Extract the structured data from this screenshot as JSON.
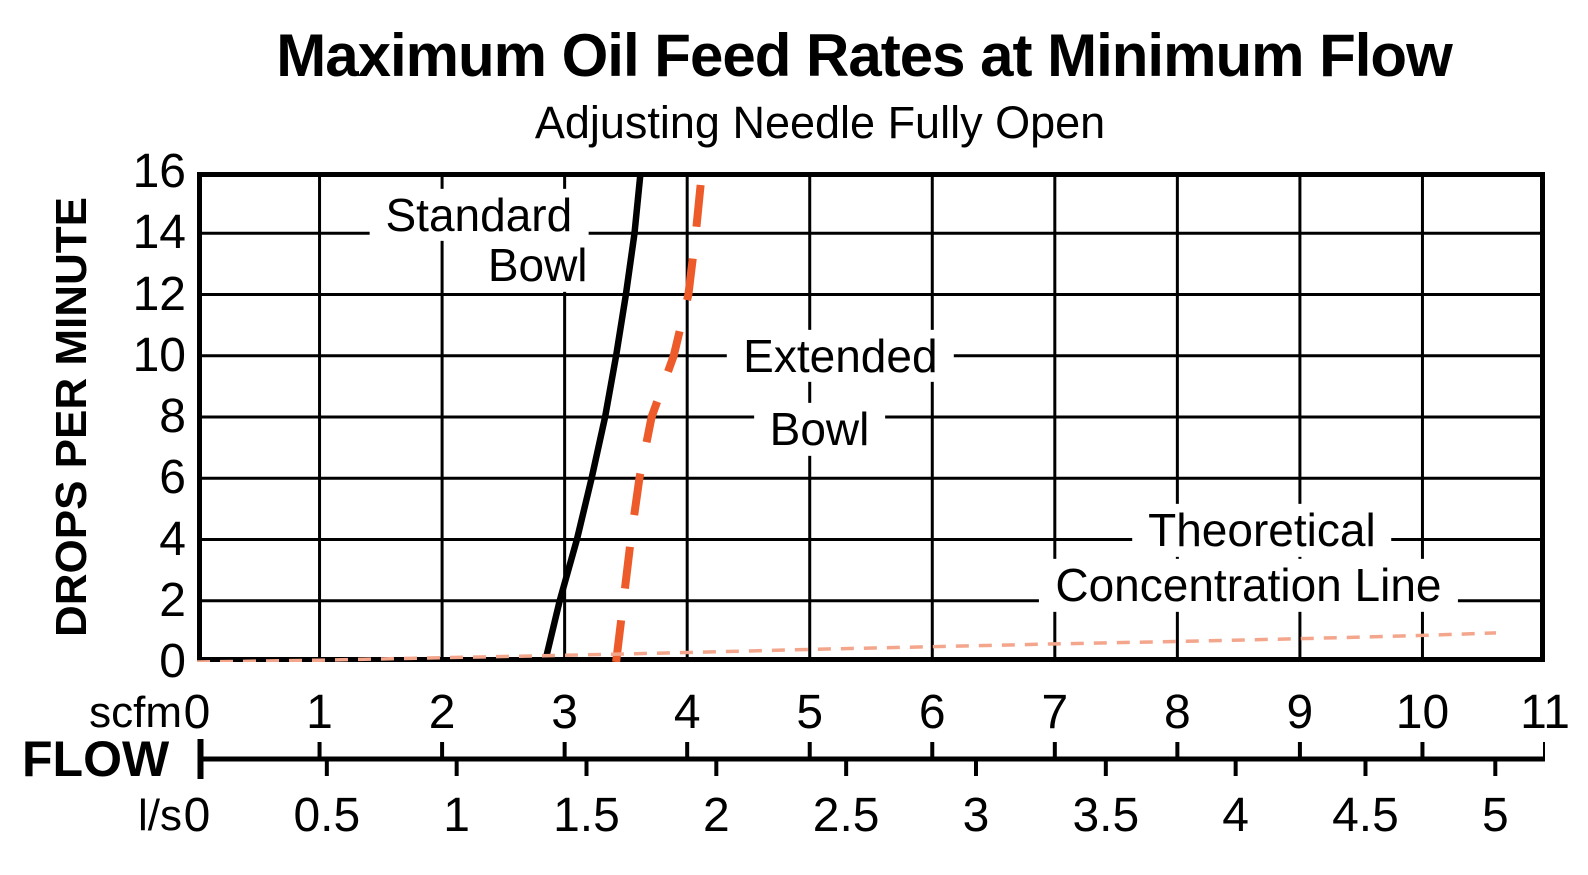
{
  "chart_data": {
    "type": "line",
    "title": "Maximum Oil Feed Rates at Minimum Flow",
    "subtitle": "Adjusting Needle Fully Open",
    "ylabel": "DROPS PER MINUTE",
    "xlabel": "FLOW",
    "x_axis": {
      "primary_unit": "scfm",
      "secondary_unit": "l/s",
      "scfm_range": [
        0,
        11
      ],
      "ls_range": [
        0,
        5
      ],
      "scfm_ticks": [
        0,
        1,
        2,
        3,
        4,
        5,
        6,
        7,
        8,
        9,
        10,
        11
      ],
      "ls_ticks": [
        0,
        0.5,
        1,
        1.5,
        2,
        2.5,
        3,
        3.5,
        4,
        4.5,
        5
      ],
      "ls_to_scfm": 2.1189
    },
    "y_axis": {
      "ticks": [
        0,
        2,
        4,
        6,
        8,
        10,
        12,
        14,
        16
      ],
      "range": [
        0,
        16
      ]
    },
    "grid": {
      "on": true,
      "x_step_scfm": 1,
      "y_step_drops": 2
    },
    "series": [
      {
        "name": "Standard Bowl",
        "style": "solid",
        "color": "#000000",
        "points": [
          [
            2.84,
            0
          ],
          [
            2.96,
            2
          ],
          [
            3.1,
            4
          ],
          [
            3.22,
            6
          ],
          [
            3.33,
            8
          ],
          [
            3.42,
            10
          ],
          [
            3.5,
            12
          ],
          [
            3.57,
            14
          ],
          [
            3.62,
            16
          ]
        ]
      },
      {
        "name": "Extended Bowl",
        "style": "dashed",
        "color": "#EE5B2B",
        "points": [
          [
            3.42,
            0
          ],
          [
            3.48,
            2
          ],
          [
            3.54,
            4
          ],
          [
            3.61,
            6
          ],
          [
            3.71,
            8
          ],
          [
            3.89,
            10
          ],
          [
            4.01,
            12
          ],
          [
            4.07,
            14
          ],
          [
            4.12,
            16
          ]
        ]
      },
      {
        "name": "Theoretical Concentration Line",
        "style": "fine-dashed",
        "color": "#F3A68C",
        "points": [
          [
            0,
            0.0
          ],
          [
            1,
            0.06
          ],
          [
            2,
            0.14
          ],
          [
            3,
            0.22
          ],
          [
            4,
            0.31
          ],
          [
            5,
            0.41
          ],
          [
            6,
            0.5
          ],
          [
            7,
            0.59
          ],
          [
            8,
            0.67
          ],
          [
            9,
            0.76
          ],
          [
            10,
            0.87
          ],
          [
            10.6,
            0.95
          ]
        ]
      }
    ],
    "annotations": [
      {
        "text": "Standard",
        "x": 2.3,
        "y": 14.6
      },
      {
        "text": "Bowl",
        "x": 2.78,
        "y": 12.95
      },
      {
        "text": "Extended",
        "x": 5.25,
        "y": 10.0
      },
      {
        "text": "Bowl",
        "x": 5.08,
        "y": 7.6
      },
      {
        "text": "Theoretical",
        "x": 8.69,
        "y": 4.3
      },
      {
        "text": "Concentration Line",
        "x": 8.58,
        "y": 2.5
      }
    ]
  }
}
